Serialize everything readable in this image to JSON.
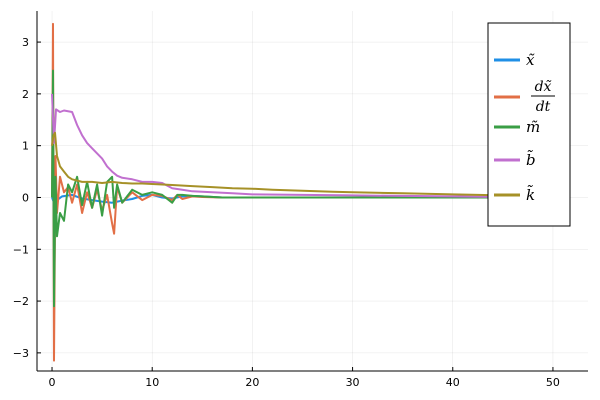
{
  "chart_data": {
    "type": "line",
    "title": "",
    "xlabel": "",
    "ylabel": "",
    "xlim": [
      -1.5,
      53.5
    ],
    "ylim": [
      -3.35,
      3.6
    ],
    "xticks": [
      0,
      10,
      20,
      30,
      40,
      50
    ],
    "yticks": [
      -3,
      -2,
      -1,
      0,
      1,
      2,
      3
    ],
    "grid": true,
    "legend_position": "top-right",
    "series": [
      {
        "name": "x̃",
        "color": "#1f8fe6",
        "x": [
          0,
          0.2,
          0.5,
          1,
          2,
          3,
          4,
          5,
          6,
          7,
          8,
          9,
          10,
          11,
          12,
          13,
          14,
          15,
          17,
          19,
          22,
          25,
          30,
          35,
          40,
          45,
          50,
          51.5
        ],
        "y": [
          0,
          -0.1,
          -0.05,
          0.02,
          0.05,
          -0.02,
          -0.05,
          -0.08,
          -0.1,
          -0.06,
          -0.03,
          0.03,
          0.05,
          0.0,
          -0.02,
          0.02,
          0.03,
          0.02,
          0.0,
          0.0,
          0.0,
          0.0,
          0.0,
          0.0,
          0.0,
          0.0,
          0.0,
          0.0
        ]
      },
      {
        "name": "dx̃/dt",
        "color": "#e26f46",
        "x": [
          0,
          0.1,
          0.2,
          0.35,
          0.5,
          0.8,
          1.2,
          1.6,
          2,
          2.5,
          3,
          3.5,
          4,
          4.5,
          5,
          5.5,
          6,
          6.2,
          6.5,
          7,
          8,
          9,
          10,
          11,
          12,
          12.5,
          13,
          14,
          15,
          17,
          19,
          22,
          25,
          30,
          35,
          40,
          45,
          50,
          51.5
        ],
        "y": [
          0,
          3.35,
          -3.15,
          0.8,
          -0.3,
          0.4,
          0.1,
          0.2,
          -0.1,
          0.25,
          -0.3,
          0.1,
          -0.2,
          0.15,
          -0.25,
          0.05,
          -0.5,
          -0.7,
          0.2,
          -0.1,
          0.1,
          -0.05,
          0.05,
          0.03,
          -0.05,
          0.05,
          -0.03,
          0.02,
          0.01,
          0.0,
          0.0,
          0.0,
          0.0,
          0.0,
          0.0,
          0.0,
          0.0,
          0.0,
          0.0
        ]
      },
      {
        "name": "m̃",
        "color": "#3a9e45",
        "x": [
          0,
          0.1,
          0.2,
          0.35,
          0.5,
          0.8,
          1.2,
          1.6,
          2,
          2.5,
          3,
          3.5,
          4,
          4.5,
          5,
          5.5,
          6,
          6.2,
          6.5,
          7,
          8,
          9,
          10,
          11,
          12,
          12.5,
          13,
          14,
          15,
          17,
          19,
          22,
          25,
          30,
          35,
          40,
          45,
          50,
          51.5
        ],
        "y": [
          0,
          2.45,
          -2.1,
          0.4,
          -0.75,
          -0.3,
          -0.45,
          0.25,
          0.1,
          0.4,
          -0.15,
          0.3,
          -0.2,
          0.25,
          -0.35,
          0.3,
          0.4,
          -0.2,
          0.25,
          -0.1,
          0.15,
          0.05,
          0.1,
          0.05,
          -0.1,
          0.05,
          0.05,
          0.03,
          0.02,
          0.0,
          0.0,
          0.0,
          0.0,
          0.0,
          0.0,
          0.0,
          0.0,
          0.0,
          0.0
        ]
      },
      {
        "name": "b̃",
        "color": "#c170cf",
        "x": [
          0,
          0.2,
          0.4,
          0.8,
          1.2,
          2,
          2.5,
          3,
          3.5,
          4,
          4.5,
          5,
          5.5,
          6,
          6.5,
          7,
          8,
          9,
          10,
          11,
          12,
          13,
          14,
          16,
          18,
          20,
          25,
          30,
          35,
          40,
          45,
          50,
          51.5
        ],
        "y": [
          2.0,
          1.05,
          1.7,
          1.65,
          1.68,
          1.65,
          1.4,
          1.2,
          1.05,
          0.95,
          0.85,
          0.75,
          0.6,
          0.5,
          0.42,
          0.38,
          0.35,
          0.3,
          0.3,
          0.28,
          0.18,
          0.15,
          0.12,
          0.1,
          0.08,
          0.06,
          0.05,
          0.04,
          0.03,
          0.02,
          0.01,
          0.01,
          0.0
        ]
      },
      {
        "name": "k̃",
        "color": "#a69127",
        "x": [
          0,
          0.15,
          0.3,
          0.5,
          0.8,
          1.2,
          1.6,
          2,
          3,
          4,
          5,
          6,
          7,
          8,
          9,
          10,
          11,
          12,
          14,
          16,
          18,
          20,
          22,
          25,
          28,
          30,
          35,
          40,
          45,
          50,
          51.5
        ],
        "y": [
          1.0,
          1.2,
          1.25,
          0.8,
          0.6,
          0.5,
          0.4,
          0.35,
          0.3,
          0.3,
          0.28,
          0.3,
          0.28,
          0.27,
          0.27,
          0.26,
          0.25,
          0.24,
          0.22,
          0.2,
          0.18,
          0.17,
          0.15,
          0.13,
          0.11,
          0.1,
          0.08,
          0.06,
          0.04,
          0.03,
          0.02
        ]
      }
    ]
  }
}
